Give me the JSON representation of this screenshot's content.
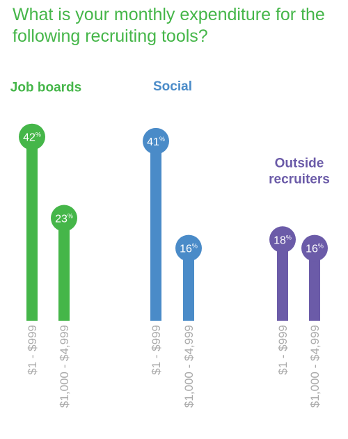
{
  "chart_data": {
    "type": "bar",
    "title": "What is your monthly expenditure for the following recruiting tools?",
    "categories": [
      "$1 - $999",
      "$1,000 - $4,999"
    ],
    "series": [
      {
        "name": "Job boards",
        "values": [
          42,
          23
        ],
        "color": "#45b649"
      },
      {
        "name": "Social",
        "values": [
          41,
          16
        ],
        "color": "#4a8bc8"
      },
      {
        "name": [
          "Outside",
          "recruiters"
        ],
        "values": [
          18,
          16
        ],
        "color": "#6b5ba8"
      }
    ],
    "value_suffix": "%",
    "ylim": [
      0,
      50
    ],
    "grid": false,
    "legend": "none"
  }
}
